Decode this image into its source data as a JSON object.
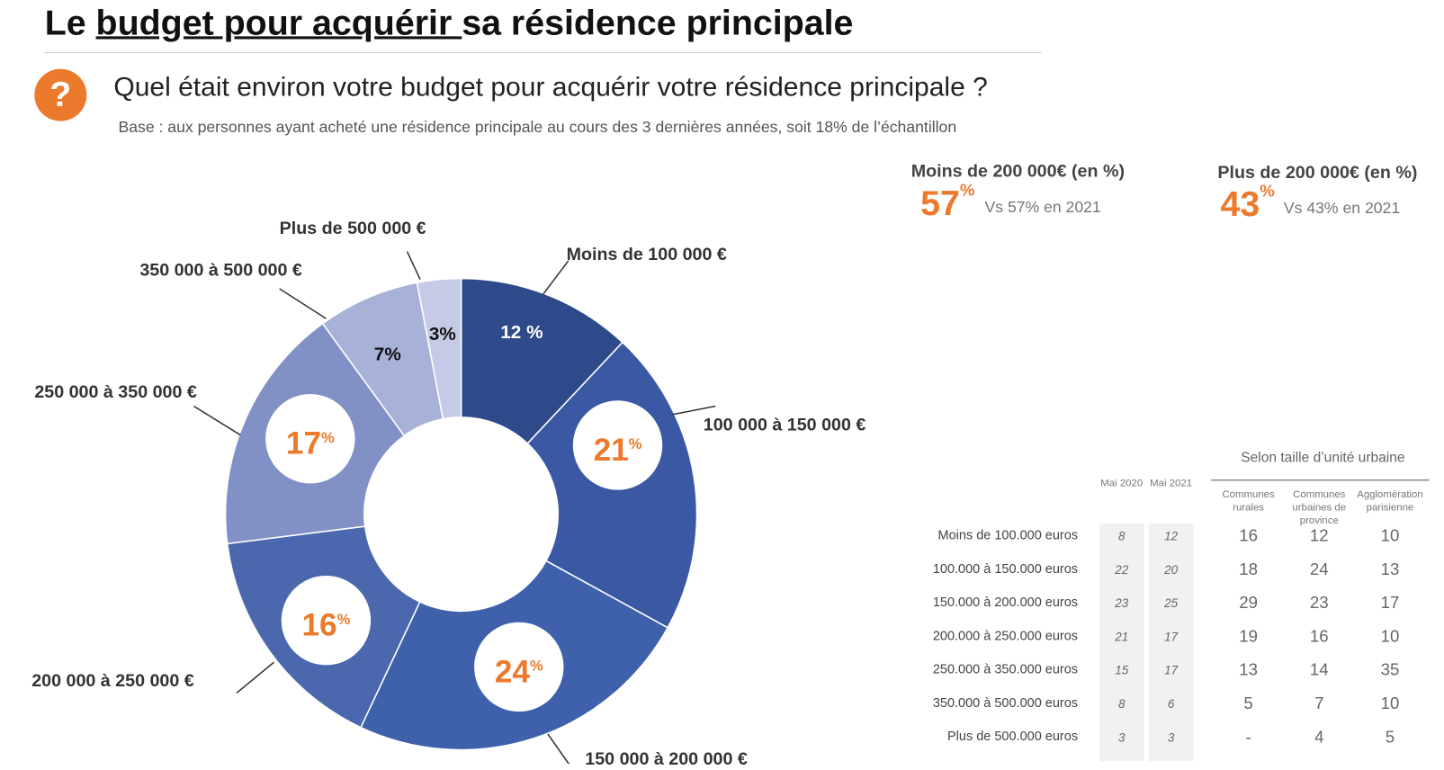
{
  "header": {
    "title_pre": "Le ",
    "title_underlined": "budget pour acquérir ",
    "title_post": "sa résidence principale"
  },
  "question": {
    "icon": "question-mark-icon",
    "icon_glyph": "?",
    "text": "Quel était environ votre budget pour acquérir votre résidence principale ?",
    "base": "Base : aux personnes ayant acheté une résidence principale au cours des 3 dernières années, soit 18% de l’échantillon"
  },
  "kpis": [
    {
      "heading": "Moins de 200 000€ (en %)",
      "value": "57",
      "unit": "%",
      "compare": "Vs 57% en 2021"
    },
    {
      "heading": "Plus de 200 000€ (en %)",
      "value": "43",
      "unit": "%",
      "compare": "Vs 43% en 2021"
    }
  ],
  "chart_data": {
    "type": "pie",
    "donut": true,
    "categories": [
      "Moins de 100 000 €",
      "100 000 à 150 000 €",
      "150 000 à 200 000 €",
      "200 000 à 250 000 €",
      "250 000 à 350 000 €",
      "350 000 à 500 000 €",
      "Plus de 500 000 €"
    ],
    "values": [
      12,
      21,
      24,
      16,
      17,
      7,
      3
    ],
    "data_labels": [
      "12 %",
      "21",
      "24",
      "16",
      "17",
      "7%",
      "3%"
    ],
    "colors": [
      "#2f4a8a",
      "#3a58a3",
      "#3f61ab",
      "#4b67ae",
      "#8191c6",
      "#a8b2d8",
      "#c5cbe6"
    ],
    "accent": "#ec7a2c"
  },
  "table": {
    "group_header": "Selon taille d’unité urbaine",
    "columns": [
      "Mai 2020",
      "Mai 2021",
      "Communes rurales",
      "Communes urbaines de province",
      "Agglomération parisienne"
    ],
    "rows": [
      {
        "label": "Moins de 100.000 euros",
        "values": [
          "8",
          "12",
          "16",
          "12",
          "10"
        ]
      },
      {
        "label": "100.000 à 150.000 euros",
        "values": [
          "22",
          "20",
          "18",
          "24",
          "13"
        ]
      },
      {
        "label": "150.000 à 200.000 euros",
        "values": [
          "23",
          "25",
          "29",
          "23",
          "17"
        ]
      },
      {
        "label": "200.000 à 250.000 euros",
        "values": [
          "21",
          "17",
          "19",
          "16",
          "10"
        ]
      },
      {
        "label": "250.000 à 350.000 euros",
        "values": [
          "15",
          "17",
          "13",
          "14",
          "35"
        ]
      },
      {
        "label": "350.000 à 500.000 euros",
        "values": [
          "8",
          "6",
          "5",
          "7",
          "10"
        ]
      },
      {
        "label": "Plus de 500.000 euros",
        "values": [
          "3",
          "3",
          "-",
          "4",
          "5"
        ]
      }
    ]
  }
}
